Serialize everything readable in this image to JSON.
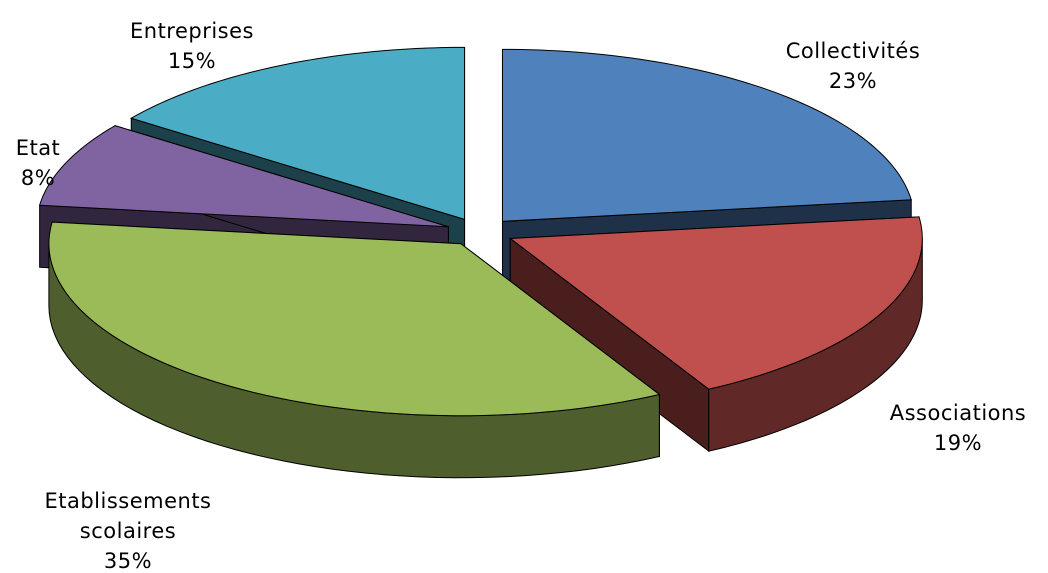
{
  "chart_data": {
    "type": "pie",
    "style": "3d-exploded",
    "title": "",
    "slices": [
      {
        "label": "Collectivités",
        "lines": [
          "Collectivités"
        ],
        "value": 23,
        "display": "23%",
        "color": "#4F81BD"
      },
      {
        "label": "Associations",
        "lines": [
          "Associations"
        ],
        "value": 19,
        "display": "19%",
        "color": "#C0504D"
      },
      {
        "label": "Etablissements scolaires",
        "lines": [
          "Etablissements",
          "scolaires"
        ],
        "value": 35,
        "display": "35%",
        "color": "#9BBB59"
      },
      {
        "label": "Etat",
        "lines": [
          "Etat"
        ],
        "value": 8,
        "display": "8%",
        "color": "#8064A2"
      },
      {
        "label": "Entreprises",
        "lines": [
          "Entreprises"
        ],
        "value": 15,
        "display": "15%",
        "color": "#4BACC6"
      }
    ]
  }
}
